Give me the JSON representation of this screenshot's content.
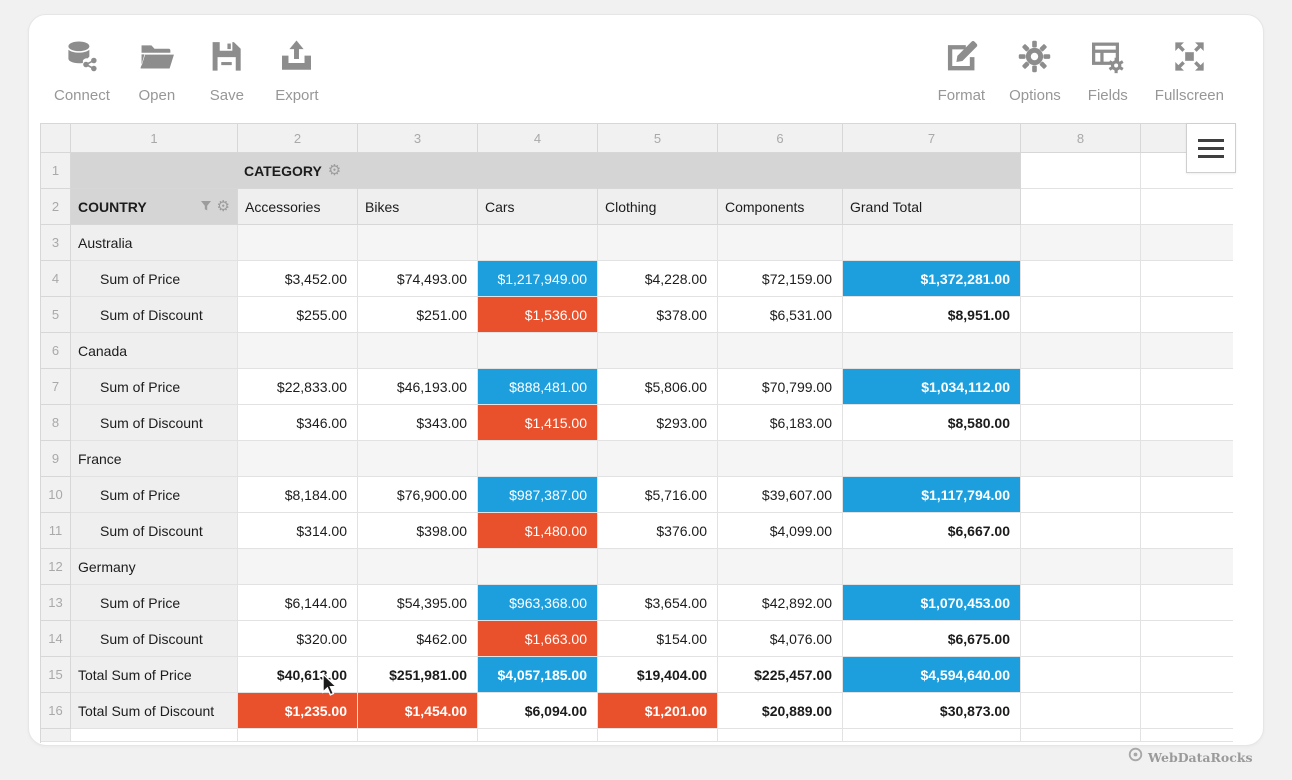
{
  "toolbar": {
    "left": [
      {
        "label": "Connect",
        "icon": "database-connect-icon"
      },
      {
        "label": "Open",
        "icon": "open-folder-icon"
      },
      {
        "label": "Save",
        "icon": "save-floppy-icon"
      },
      {
        "label": "Export",
        "icon": "export-icon"
      }
    ],
    "right": [
      {
        "label": "Format",
        "icon": "format-edit-icon"
      },
      {
        "label": "Options",
        "icon": "options-gear-icon"
      },
      {
        "label": "Fields",
        "icon": "fields-icon"
      },
      {
        "label": "Fullscreen",
        "icon": "fullscreen-icon"
      }
    ]
  },
  "grid": {
    "column_numbers": [
      "1",
      "2",
      "3",
      "4",
      "5",
      "6",
      "7",
      "8",
      ""
    ],
    "category_header": "CATEGORY",
    "row_dimension_header": "COUNTRY",
    "column_members": [
      "Accessories",
      "Bikes",
      "Cars",
      "Clothing",
      "Components",
      "Grand Total"
    ],
    "rows": [
      {
        "num": "3",
        "label": "Australia",
        "type": "country",
        "cells": []
      },
      {
        "num": "4",
        "label": "Sum of Price",
        "type": "measure",
        "cells": [
          {
            "v": "$3,452.00"
          },
          {
            "v": "$74,493.00"
          },
          {
            "v": "$1,217,949.00",
            "s": "blue"
          },
          {
            "v": "$4,228.00"
          },
          {
            "v": "$72,159.00"
          },
          {
            "v": "$1,372,281.00",
            "s": "blue",
            "b": true
          }
        ]
      },
      {
        "num": "5",
        "label": "Sum of Discount",
        "type": "measure",
        "cells": [
          {
            "v": "$255.00"
          },
          {
            "v": "$251.00"
          },
          {
            "v": "$1,536.00",
            "s": "red"
          },
          {
            "v": "$378.00"
          },
          {
            "v": "$6,531.00"
          },
          {
            "v": "$8,951.00",
            "b": true
          }
        ]
      },
      {
        "num": "6",
        "label": "Canada",
        "type": "country",
        "cells": []
      },
      {
        "num": "7",
        "label": "Sum of Price",
        "type": "measure",
        "cells": [
          {
            "v": "$22,833.00"
          },
          {
            "v": "$46,193.00"
          },
          {
            "v": "$888,481.00",
            "s": "blue"
          },
          {
            "v": "$5,806.00"
          },
          {
            "v": "$70,799.00"
          },
          {
            "v": "$1,034,112.00",
            "s": "blue",
            "b": true
          }
        ]
      },
      {
        "num": "8",
        "label": "Sum of Discount",
        "type": "measure",
        "cells": [
          {
            "v": "$346.00"
          },
          {
            "v": "$343.00"
          },
          {
            "v": "$1,415.00",
            "s": "red"
          },
          {
            "v": "$293.00"
          },
          {
            "v": "$6,183.00"
          },
          {
            "v": "$8,580.00",
            "b": true
          }
        ]
      },
      {
        "num": "9",
        "label": "France",
        "type": "country",
        "cells": []
      },
      {
        "num": "10",
        "label": "Sum of Price",
        "type": "measure",
        "cells": [
          {
            "v": "$8,184.00"
          },
          {
            "v": "$76,900.00"
          },
          {
            "v": "$987,387.00",
            "s": "blue"
          },
          {
            "v": "$5,716.00"
          },
          {
            "v": "$39,607.00"
          },
          {
            "v": "$1,117,794.00",
            "s": "blue",
            "b": true
          }
        ]
      },
      {
        "num": "11",
        "label": "Sum of Discount",
        "type": "measure",
        "cells": [
          {
            "v": "$314.00"
          },
          {
            "v": "$398.00"
          },
          {
            "v": "$1,480.00",
            "s": "red"
          },
          {
            "v": "$376.00"
          },
          {
            "v": "$4,099.00"
          },
          {
            "v": "$6,667.00",
            "b": true
          }
        ]
      },
      {
        "num": "12",
        "label": "Germany",
        "type": "country",
        "cells": []
      },
      {
        "num": "13",
        "label": "Sum of Price",
        "type": "measure",
        "cells": [
          {
            "v": "$6,144.00"
          },
          {
            "v": "$54,395.00"
          },
          {
            "v": "$963,368.00",
            "s": "blue"
          },
          {
            "v": "$3,654.00"
          },
          {
            "v": "$42,892.00"
          },
          {
            "v": "$1,070,453.00",
            "s": "blue",
            "b": true
          }
        ]
      },
      {
        "num": "14",
        "label": "Sum of Discount",
        "type": "measure",
        "cells": [
          {
            "v": "$320.00"
          },
          {
            "v": "$462.00"
          },
          {
            "v": "$1,663.00",
            "s": "red"
          },
          {
            "v": "$154.00"
          },
          {
            "v": "$4,076.00"
          },
          {
            "v": "$6,675.00",
            "b": true
          }
        ]
      },
      {
        "num": "15",
        "label": "Total Sum of Price",
        "type": "total",
        "cells": [
          {
            "v": "$40,613.00",
            "b": true
          },
          {
            "v": "$251,981.00",
            "b": true
          },
          {
            "v": "$4,057,185.00",
            "s": "blue",
            "b": true
          },
          {
            "v": "$19,404.00",
            "b": true
          },
          {
            "v": "$225,457.00",
            "b": true
          },
          {
            "v": "$4,594,640.00",
            "s": "blue",
            "b": true
          }
        ]
      },
      {
        "num": "16",
        "label": "Total Sum of Discount",
        "type": "total",
        "cells": [
          {
            "v": "$1,235.00",
            "s": "red",
            "b": true
          },
          {
            "v": "$1,454.00",
            "s": "red",
            "b": true
          },
          {
            "v": "$6,094.00",
            "b": true
          },
          {
            "v": "$1,201.00",
            "s": "red",
            "b": true
          },
          {
            "v": "$20,889.00",
            "b": true
          },
          {
            "v": "$30,873.00",
            "b": true
          }
        ]
      }
    ]
  },
  "colors": {
    "highlight_blue": "#1e9fdd",
    "highlight_red": "#e8512c",
    "header_gray": "#d5d5d5"
  },
  "branding": {
    "label": "WebDataRocks"
  }
}
